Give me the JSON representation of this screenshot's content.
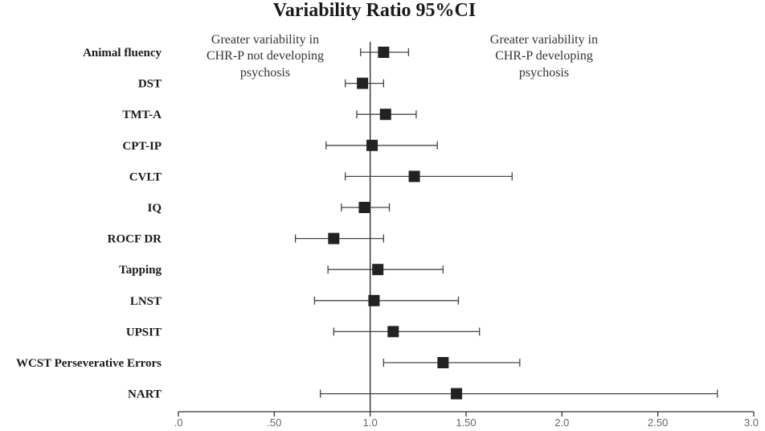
{
  "chart_data": {
    "type": "forest",
    "title": "Variability Ratio 95%CI",
    "reference_value": 1.0,
    "xlim": [
      0,
      3.0
    ],
    "x_ticks": [
      0,
      0.5,
      1.0,
      1.5,
      2.0,
      2.5,
      3.0
    ],
    "x_tick_labels": [
      ".0",
      ".50",
      "1.0",
      "1.50",
      "2.0",
      "2.50",
      "3.0"
    ],
    "annotations": {
      "left": [
        "Greater variability in",
        "CHR-P not developing",
        "psychosis"
      ],
      "right": [
        "Greater variability in",
        "CHR-P developing",
        "psychosis"
      ]
    },
    "rows": [
      {
        "label": "Animal fluency",
        "estimate": 1.07,
        "lower": 0.95,
        "upper": 1.2
      },
      {
        "label": "DST",
        "estimate": 0.96,
        "lower": 0.87,
        "upper": 1.07
      },
      {
        "label": "TMT-A",
        "estimate": 1.08,
        "lower": 0.93,
        "upper": 1.24
      },
      {
        "label": "CPT-IP",
        "estimate": 1.01,
        "lower": 0.77,
        "upper": 1.35
      },
      {
        "label": "CVLT",
        "estimate": 1.23,
        "lower": 0.87,
        "upper": 1.74
      },
      {
        "label": "IQ",
        "estimate": 0.97,
        "lower": 0.85,
        "upper": 1.1
      },
      {
        "label": "ROCF  DR",
        "estimate": 0.81,
        "lower": 0.61,
        "upper": 1.07
      },
      {
        "label": "Tapping",
        "estimate": 1.04,
        "lower": 0.78,
        "upper": 1.38
      },
      {
        "label": "LNST",
        "estimate": 1.02,
        "lower": 0.71,
        "upper": 1.46
      },
      {
        "label": "UPSIT",
        "estimate": 1.12,
        "lower": 0.81,
        "upper": 1.57
      },
      {
        "label": "WCST Perseverative Errors",
        "estimate": 1.38,
        "lower": 1.07,
        "upper": 1.78
      },
      {
        "label": "NART",
        "estimate": 1.45,
        "lower": 0.74,
        "upper": 2.81
      }
    ]
  },
  "colors": {
    "marker": "#222222",
    "line": "#444444",
    "text": "#1a1a1a",
    "tick_text": "#666666"
  }
}
